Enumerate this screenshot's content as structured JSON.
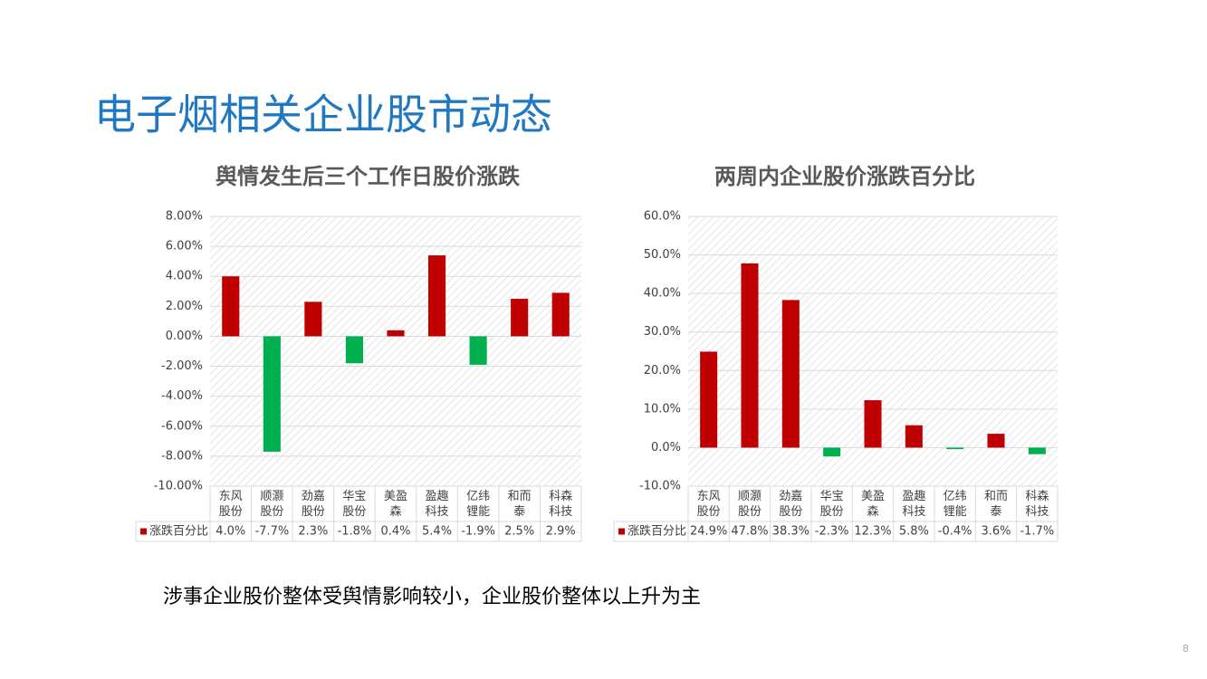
{
  "slide": {
    "title": "电子烟相关企业股市动态",
    "caption": "涉事企业股价整体受舆情影响较小，企业股价整体以上升为主",
    "page_number": "8"
  },
  "chart_data": [
    {
      "type": "bar",
      "title": "舆情发生后三个工作日股价涨跌",
      "categories": [
        "东风股份",
        "顺灏股份",
        "劲嘉股份",
        "华宝股份",
        "美盈森",
        "盈趣科技",
        "亿纬锂能",
        "和而泰",
        "科森科技"
      ],
      "series": [
        {
          "name": "涨跌百分比",
          "color": "#c00000",
          "negative_color": "#00b050",
          "values": [
            4.0,
            -7.7,
            2.3,
            -1.8,
            0.4,
            5.4,
            -1.9,
            2.5,
            2.9
          ],
          "value_labels": [
            "4.0%",
            "-7.7%",
            "2.3%",
            "-1.8%",
            "0.4%",
            "5.4%",
            "-1.9%",
            "2.5%",
            "2.9%"
          ]
        }
      ],
      "ylim": [
        -10,
        8
      ],
      "yticks": [
        {
          "value": -10,
          "label": "-10.00%"
        },
        {
          "value": -8,
          "label": "-8.00%"
        },
        {
          "value": -6,
          "label": "-6.00%"
        },
        {
          "value": -4,
          "label": "-4.00%"
        },
        {
          "value": -2,
          "label": "-2.00%"
        },
        {
          "value": 0,
          "label": "0.00%"
        },
        {
          "value": 2,
          "label": "2.00%"
        },
        {
          "value": 4,
          "label": "4.00%"
        },
        {
          "value": 6,
          "label": "6.00%"
        },
        {
          "value": 8,
          "label": "8.00%"
        }
      ],
      "grid": true
    },
    {
      "type": "bar",
      "title": "两周内企业股价涨跌百分比",
      "categories": [
        "东风股份",
        "顺灏股份",
        "劲嘉股份",
        "华宝股份",
        "美盈森",
        "盈趣科技",
        "亿纬锂能",
        "和而泰",
        "科森科技"
      ],
      "series": [
        {
          "name": "涨跌百分比",
          "color": "#c00000",
          "negative_color": "#00b050",
          "values": [
            24.9,
            47.8,
            38.3,
            -2.3,
            12.3,
            5.8,
            -0.4,
            3.6,
            -1.7
          ],
          "value_labels": [
            "24.9%",
            "47.8%",
            "38.3%",
            "-2.3%",
            "12.3%",
            "5.8%",
            "-0.4%",
            "3.6%",
            "-1.7%"
          ]
        }
      ],
      "ylim": [
        -10,
        60
      ],
      "yticks": [
        {
          "value": -10,
          "label": "-10.0%"
        },
        {
          "value": 0,
          "label": "0.0%"
        },
        {
          "value": 10,
          "label": "10.0%"
        },
        {
          "value": 20,
          "label": "20.0%"
        },
        {
          "value": 30,
          "label": "30.0%"
        },
        {
          "value": 40,
          "label": "40.0%"
        },
        {
          "value": 50,
          "label": "50.0%"
        },
        {
          "value": 60,
          "label": "60.0%"
        }
      ],
      "grid": true
    }
  ]
}
